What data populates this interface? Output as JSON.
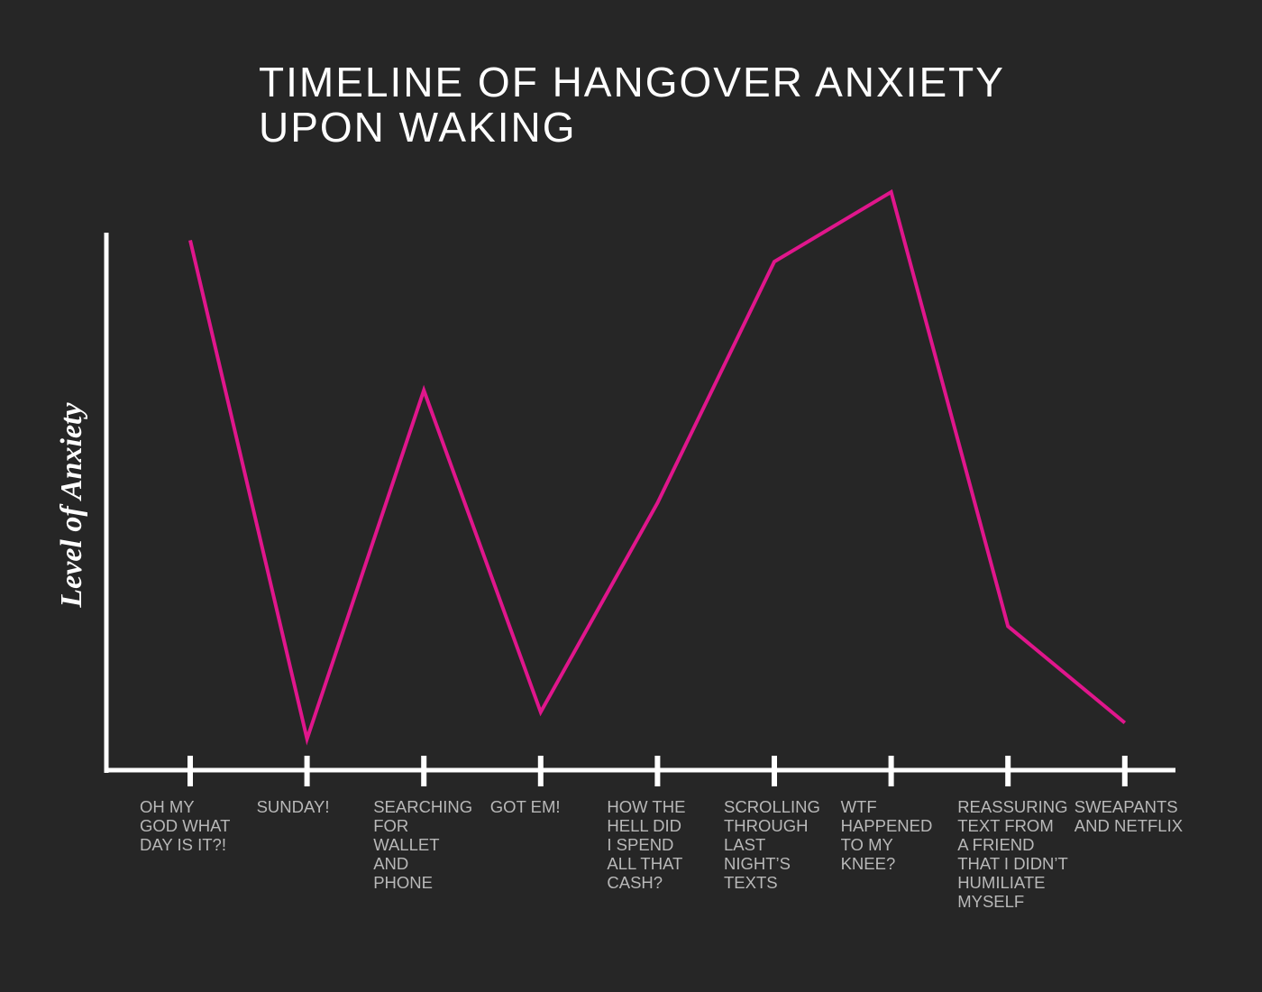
{
  "chart_data": {
    "type": "line",
    "title": "TIMELINE OF HANGOVER ANXIETY\nUPON WAKING",
    "y_label": "Level of Anxiety",
    "categories": [
      "OH MY\nGOD WHAT\nDAY IS IT?!",
      "SUNDAY!",
      "SEARCHING\nFOR\nWALLET\nAND\nPHONE",
      "GOT EM!",
      "HOW THE\nHELL DID\nI SPEND\nALL THAT\nCASH?",
      "SCROLLING\nTHROUGH\nLAST\nNIGHT’S\nTEXTS",
      "WTF\nHAPPENED\nTO MY\nKNEE?",
      "REASSURING\nTEXT FROM\nA FRIEND\nTHAT I DIDN’T\nHUMILIATE\nMYSELF",
      "SWEAPANTS\nAND NETFLIX"
    ],
    "values": [
      99,
      6,
      71,
      11,
      50,
      95,
      108,
      27,
      9
    ],
    "color": "#e0168c",
    "ylim": [
      0,
      110
    ]
  }
}
